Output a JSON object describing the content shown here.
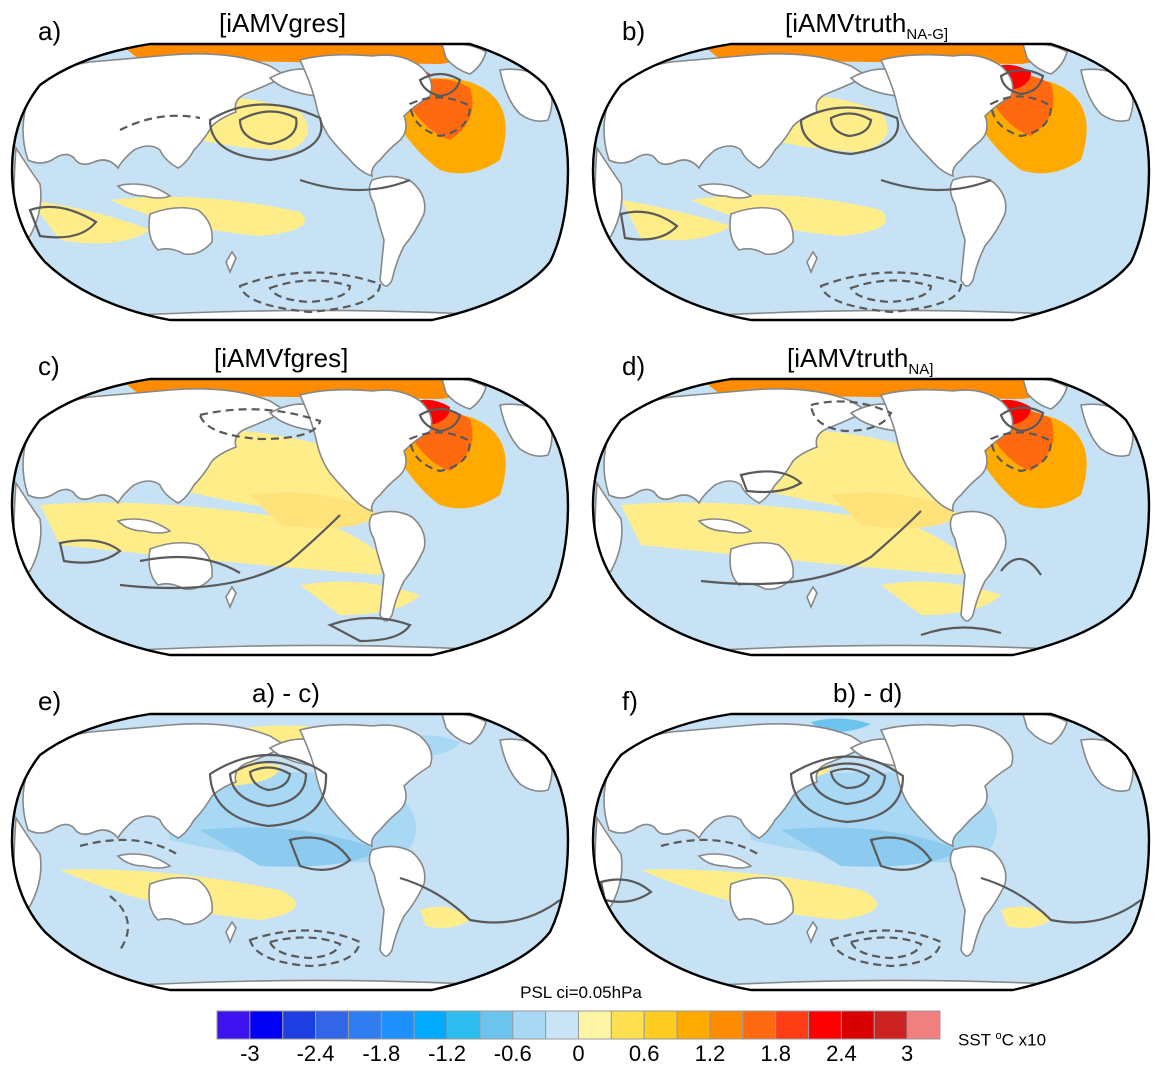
{
  "panels": [
    {
      "label": "a)",
      "title": "[iAMVgres]",
      "title_sub": ""
    },
    {
      "label": "b)",
      "title": "[iAMVtruth",
      "title_sub": "NA-G]"
    },
    {
      "label": "c)",
      "title": "[iAMVfgres]",
      "title_sub": ""
    },
    {
      "label": "d)",
      "title": "[iAMVtruth",
      "title_sub": "NA]"
    },
    {
      "label": "e)",
      "title": "a) - c)",
      "title_sub": ""
    },
    {
      "label": "f)",
      "title": "b) - d)",
      "title_sub": ""
    }
  ],
  "psl_note": "PSL ci=0.05hPa",
  "colorbar": {
    "tick_labels": [
      "-3",
      "-2.4",
      "-1.8",
      "-1.2",
      "-0.6",
      "0",
      "0.6",
      "1.2",
      "1.8",
      "2.4",
      "3"
    ],
    "unit_prefix": "SST ",
    "unit_sup": "o",
    "unit_suffix": "C x10",
    "colors": [
      "#3d14f0",
      "#0000f5",
      "#1d3ee0",
      "#3366e6",
      "#2f7df0",
      "#1e90ff",
      "#00aaff",
      "#2fbdf0",
      "#6cc4ee",
      "#a8d8f4",
      "#c8e4f6",
      "#fff5a6",
      "#ffe050",
      "#ffcc22",
      "#ffaa00",
      "#ff8c00",
      "#ff6a10",
      "#ff3c14",
      "#ff0000",
      "#d80000",
      "#cc2222",
      "#f08080"
    ]
  },
  "colors": {
    "land": "#ffffff",
    "coast": "#888888",
    "contour": "#5a5a5a",
    "warm": "#ffed8a",
    "cool": "#c6e2f4"
  }
}
